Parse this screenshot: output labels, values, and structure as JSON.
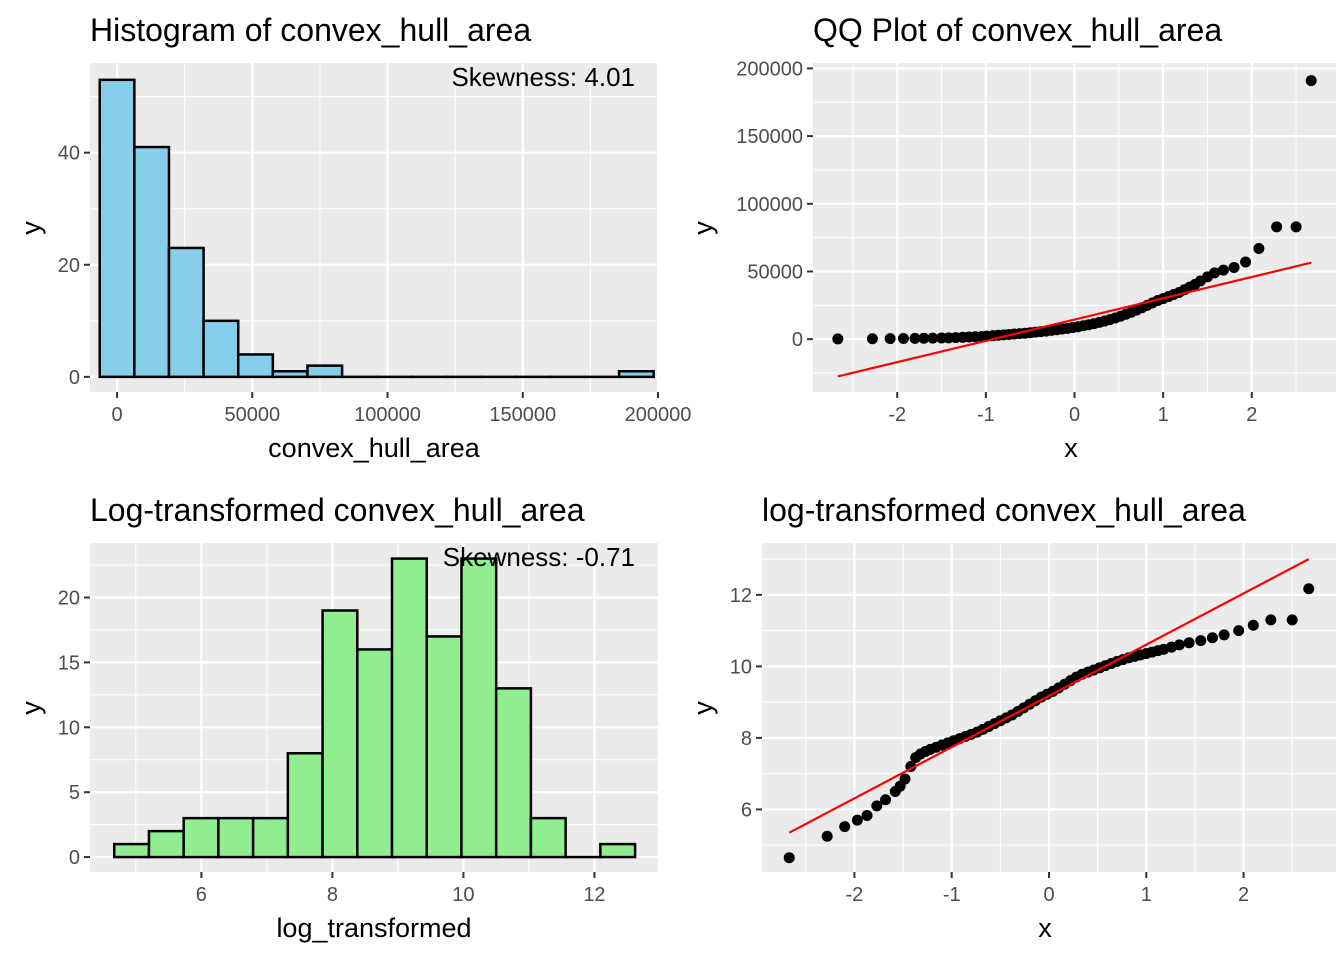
{
  "chart_data": [
    {
      "type": "bar",
      "title": "Histogram of convex_hull_area",
      "xlabel": "convex_hull_area",
      "ylabel": "y",
      "annotation": "Skewness: 4.01",
      "fill_color": "#87ceeb",
      "xlim": [
        -10000,
        200000
      ],
      "ylim": [
        -2.7,
        56
      ],
      "xticks": [
        0,
        50000,
        100000,
        150000,
        200000
      ],
      "xtick_labels": [
        "0",
        "50000",
        "100000",
        "150000",
        "200000"
      ],
      "yticks": [
        0,
        20,
        40
      ],
      "ytick_labels": [
        "0",
        "20",
        "40"
      ],
      "bins": [
        {
          "x0": -6400,
          "x1": 6400,
          "count": 53
        },
        {
          "x0": 6400,
          "x1": 19200,
          "count": 41
        },
        {
          "x0": 19200,
          "x1": 32000,
          "count": 23
        },
        {
          "x0": 32000,
          "x1": 44800,
          "count": 10
        },
        {
          "x0": 44800,
          "x1": 57600,
          "count": 4
        },
        {
          "x0": 57600,
          "x1": 70400,
          "count": 1
        },
        {
          "x0": 70400,
          "x1": 83200,
          "count": 2
        },
        {
          "x0": 83200,
          "x1": 96000,
          "count": 0
        },
        {
          "x0": 96000,
          "x1": 108800,
          "count": 0
        },
        {
          "x0": 108800,
          "x1": 121600,
          "count": 0
        },
        {
          "x0": 121600,
          "x1": 134400,
          "count": 0
        },
        {
          "x0": 134400,
          "x1": 147200,
          "count": 0
        },
        {
          "x0": 147200,
          "x1": 160000,
          "count": 0
        },
        {
          "x0": 160000,
          "x1": 172800,
          "count": 0
        },
        {
          "x0": 172800,
          "x1": 185600,
          "count": 0
        },
        {
          "x0": 185600,
          "x1": 198400,
          "count": 1
        }
      ]
    },
    {
      "type": "scatter",
      "title": "QQ Plot of convex_hull_area",
      "xlabel": "x",
      "ylabel": "y",
      "xlim": [
        -2.95,
        2.95
      ],
      "ylim": [
        -39000,
        204000
      ],
      "xticks": [
        -2,
        -1,
        0,
        1,
        2
      ],
      "xtick_labels": [
        "-2",
        "-1",
        "0",
        "1",
        "2"
      ],
      "yticks": [
        0,
        50000,
        100000,
        150000,
        200000
      ],
      "ytick_labels": [
        "0",
        "50000",
        "100000",
        "150000",
        "200000"
      ],
      "points": [
        [
          -2.67,
          200
        ],
        [
          -2.28,
          300
        ],
        [
          -2.08,
          400
        ],
        [
          -1.93,
          500
        ],
        [
          -1.8,
          600
        ],
        [
          -1.7,
          700
        ],
        [
          -1.6,
          800
        ],
        [
          -1.5,
          900
        ],
        [
          -1.42,
          1000
        ],
        [
          -1.34,
          1200
        ],
        [
          -1.26,
          1400
        ],
        [
          -1.19,
          1600
        ],
        [
          -1.12,
          1800
        ],
        [
          -1.05,
          2000
        ],
        [
          -0.99,
          2300
        ],
        [
          -0.92,
          2600
        ],
        [
          -0.86,
          2900
        ],
        [
          -0.8,
          3200
        ],
        [
          -0.74,
          3500
        ],
        [
          -0.68,
          3800
        ],
        [
          -0.62,
          4100
        ],
        [
          -0.56,
          4400
        ],
        [
          -0.5,
          4800
        ],
        [
          -0.44,
          5200
        ],
        [
          -0.38,
          5600
        ],
        [
          -0.32,
          6000
        ],
        [
          -0.26,
          6500
        ],
        [
          -0.2,
          7000
        ],
        [
          -0.14,
          7500
        ],
        [
          -0.08,
          8000
        ],
        [
          -0.02,
          8600
        ],
        [
          0.04,
          9200
        ],
        [
          0.1,
          9900
        ],
        [
          0.16,
          10700
        ],
        [
          0.22,
          11500
        ],
        [
          0.28,
          12400
        ],
        [
          0.34,
          13400
        ],
        [
          0.4,
          14500
        ],
        [
          0.46,
          15700
        ],
        [
          0.52,
          17000
        ],
        [
          0.58,
          18400
        ],
        [
          0.64,
          19900
        ],
        [
          0.7,
          21500
        ],
        [
          0.76,
          23200
        ],
        [
          0.82,
          25000
        ],
        [
          0.88,
          26800
        ],
        [
          0.94,
          28600
        ],
        [
          1.0,
          30000
        ],
        [
          1.06,
          31500
        ],
        [
          1.12,
          33000
        ],
        [
          1.18,
          34500
        ],
        [
          1.24,
          36500
        ],
        [
          1.3,
          38500
        ],
        [
          1.36,
          40500
        ],
        [
          1.42,
          43000
        ],
        [
          1.5,
          46000
        ],
        [
          1.58,
          49000
        ],
        [
          1.68,
          51000
        ],
        [
          1.8,
          53000
        ],
        [
          1.93,
          57000
        ],
        [
          2.08,
          67000
        ],
        [
          2.28,
          83000
        ],
        [
          2.5,
          83000
        ],
        [
          2.67,
          191000
        ]
      ],
      "line": {
        "x": [
          -2.67,
          2.67
        ],
        "y": [
          -27500,
          56500
        ],
        "color": "#ff0000"
      }
    },
    {
      "type": "bar",
      "title": "Log-transformed convex_hull_area",
      "xlabel": "log_transformed",
      "ylabel": "y",
      "annotation": "Skewness: -0.71",
      "fill_color": "#90ee90",
      "xlim": [
        4.3,
        12.97
      ],
      "ylim": [
        -1.15,
        24.2
      ],
      "xticks": [
        6,
        8,
        10,
        12
      ],
      "xtick_labels": [
        "6",
        "8",
        "10",
        "12"
      ],
      "yticks": [
        0,
        5,
        10,
        15,
        20
      ],
      "ytick_labels": [
        "0",
        "5",
        "10",
        "15",
        "20"
      ],
      "bins": [
        {
          "x0": 4.67,
          "x1": 5.2,
          "count": 1
        },
        {
          "x0": 5.2,
          "x1": 5.73,
          "count": 2
        },
        {
          "x0": 5.73,
          "x1": 6.26,
          "count": 3
        },
        {
          "x0": 6.26,
          "x1": 6.79,
          "count": 3
        },
        {
          "x0": 6.79,
          "x1": 7.32,
          "count": 3
        },
        {
          "x0": 7.32,
          "x1": 7.85,
          "count": 8
        },
        {
          "x0": 7.85,
          "x1": 8.38,
          "count": 19
        },
        {
          "x0": 8.38,
          "x1": 8.91,
          "count": 16
        },
        {
          "x0": 8.91,
          "x1": 9.44,
          "count": 23
        },
        {
          "x0": 9.44,
          "x1": 9.97,
          "count": 17
        },
        {
          "x0": 9.97,
          "x1": 10.5,
          "count": 23
        },
        {
          "x0": 10.5,
          "x1": 11.03,
          "count": 13
        },
        {
          "x0": 11.03,
          "x1": 11.56,
          "count": 3
        },
        {
          "x0": 11.56,
          "x1": 12.09,
          "count": 0
        },
        {
          "x0": 12.09,
          "x1": 12.62,
          "count": 1
        }
      ]
    },
    {
      "type": "scatter",
      "title": "log-transformed convex_hull_area",
      "xlabel": "x",
      "ylabel": "y",
      "xlim": [
        -2.95,
        2.95
      ],
      "ylim": [
        4.25,
        13.45
      ],
      "xticks": [
        -2,
        -1,
        0,
        1,
        2
      ],
      "xtick_labels": [
        "-2",
        "-1",
        "0",
        "1",
        "2"
      ],
      "yticks": [
        6,
        8,
        10,
        12
      ],
      "ytick_labels": [
        "6",
        "8",
        "10",
        "12"
      ],
      "points": [
        [
          -2.67,
          4.65
        ],
        [
          -2.28,
          5.25
        ],
        [
          -2.1,
          5.52
        ],
        [
          -1.97,
          5.7
        ],
        [
          -1.87,
          5.83
        ],
        [
          -1.77,
          6.1
        ],
        [
          -1.68,
          6.27
        ],
        [
          -1.58,
          6.5
        ],
        [
          -1.53,
          6.65
        ],
        [
          -1.48,
          6.85
        ],
        [
          -1.42,
          7.2
        ],
        [
          -1.37,
          7.45
        ],
        [
          -1.32,
          7.55
        ],
        [
          -1.27,
          7.62
        ],
        [
          -1.22,
          7.68
        ],
        [
          -1.16,
          7.74
        ],
        [
          -1.1,
          7.8
        ],
        [
          -1.04,
          7.86
        ],
        [
          -0.98,
          7.92
        ],
        [
          -0.92,
          7.98
        ],
        [
          -0.86,
          8.04
        ],
        [
          -0.8,
          8.1
        ],
        [
          -0.74,
          8.16
        ],
        [
          -0.68,
          8.24
        ],
        [
          -0.62,
          8.32
        ],
        [
          -0.56,
          8.4
        ],
        [
          -0.5,
          8.48
        ],
        [
          -0.44,
          8.56
        ],
        [
          -0.38,
          8.64
        ],
        [
          -0.32,
          8.74
        ],
        [
          -0.26,
          8.84
        ],
        [
          -0.2,
          8.94
        ],
        [
          -0.14,
          9.04
        ],
        [
          -0.08,
          9.14
        ],
        [
          -0.02,
          9.22
        ],
        [
          0.04,
          9.3
        ],
        [
          0.1,
          9.4
        ],
        [
          0.16,
          9.5
        ],
        [
          0.22,
          9.6
        ],
        [
          0.28,
          9.7
        ],
        [
          0.34,
          9.78
        ],
        [
          0.4,
          9.84
        ],
        [
          0.46,
          9.9
        ],
        [
          0.52,
          9.96
        ],
        [
          0.58,
          10.02
        ],
        [
          0.64,
          10.08
        ],
        [
          0.7,
          10.14
        ],
        [
          0.76,
          10.19
        ],
        [
          0.82,
          10.24
        ],
        [
          0.88,
          10.28
        ],
        [
          0.94,
          10.32
        ],
        [
          1.0,
          10.36
        ],
        [
          1.06,
          10.4
        ],
        [
          1.12,
          10.44
        ],
        [
          1.18,
          10.48
        ],
        [
          1.26,
          10.54
        ],
        [
          1.34,
          10.6
        ],
        [
          1.44,
          10.66
        ],
        [
          1.56,
          10.72
        ],
        [
          1.68,
          10.8
        ],
        [
          1.8,
          10.88
        ],
        [
          1.95,
          11.0
        ],
        [
          2.1,
          11.15
        ],
        [
          2.28,
          11.3
        ],
        [
          2.5,
          11.3
        ],
        [
          2.67,
          12.17
        ]
      ],
      "line": {
        "x": [
          -2.67,
          2.67
        ],
        "y": [
          5.35,
          13.0
        ],
        "color": "#ff0000"
      }
    }
  ]
}
